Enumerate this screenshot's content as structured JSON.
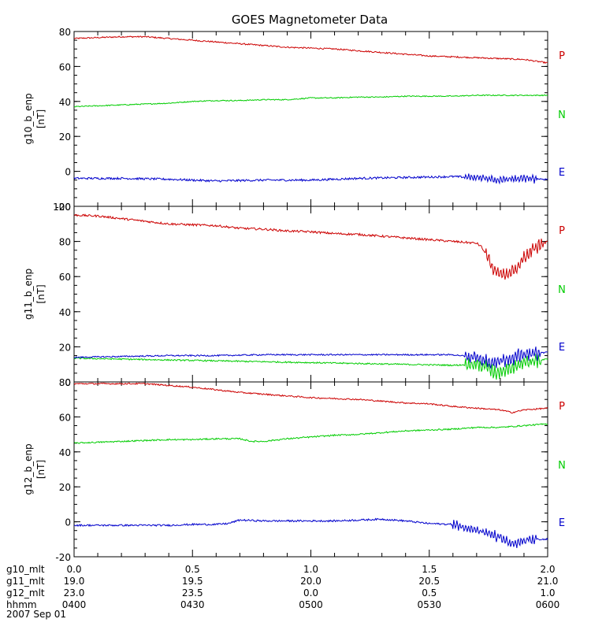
{
  "chart_data": {
    "type": "line",
    "title": "GOES Magnetometer Data",
    "colors": {
      "P": "#cc0000",
      "N": "#00cc00",
      "E": "#0000cc",
      "axis": "#000000"
    },
    "x_range": [
      0.0,
      2.0
    ],
    "x_major_ticks": [
      0.0,
      0.5,
      1.0,
      1.5,
      2.0
    ],
    "bottom_axis_rows": [
      {
        "label": "g10_mlt",
        "values": [
          "0.0",
          "0.5",
          "1.0",
          "1.5",
          "2.0"
        ]
      },
      {
        "label": "g11_mlt",
        "values": [
          "19.0",
          "19.5",
          "20.0",
          "20.5",
          "21.0"
        ]
      },
      {
        "label": "g12_mlt",
        "values": [
          "23.0",
          "23.5",
          "0.0",
          "0.5",
          "1.0"
        ]
      },
      {
        "label": "hhmm",
        "values": [
          "0400",
          "0430",
          "0500",
          "0530",
          "0600"
        ]
      }
    ],
    "date": "2007 Sep 01",
    "panels": [
      {
        "ylabel": "g10_b_enp",
        "yunit": "[nT]",
        "ylim": [
          -20,
          80
        ],
        "yticks": [
          "80",
          "60",
          "40",
          "20",
          "0",
          "-20"
        ],
        "yticks_num": [
          80,
          60,
          40,
          20,
          0,
          -20
        ],
        "legend": [
          "P",
          "N",
          "E"
        ],
        "series": [
          {
            "name": "P",
            "x": [
              0.0,
              0.1,
              0.2,
              0.3,
              0.4,
              0.5,
              0.6,
              0.7,
              0.8,
              0.9,
              1.0,
              1.1,
              1.2,
              1.3,
              1.4,
              1.5,
              1.6,
              1.7,
              1.8,
              1.9,
              2.0
            ],
            "y": [
              76,
              76.5,
              77,
              77,
              76,
              75,
              74,
              73,
              72,
              71,
              70.5,
              70,
              69,
              68,
              67,
              66,
              65.5,
              65,
              64.5,
              64,
              62
            ],
            "noise": 0.4
          },
          {
            "name": "N",
            "x": [
              0.0,
              0.1,
              0.2,
              0.3,
              0.4,
              0.5,
              0.6,
              0.7,
              0.8,
              0.9,
              1.0,
              1.1,
              1.2,
              1.3,
              1.4,
              1.5,
              1.6,
              1.7,
              1.8,
              1.9,
              2.0
            ],
            "y": [
              37,
              37.5,
              38,
              38.5,
              39,
              40,
              40.5,
              40.5,
              41,
              41,
              42,
              42,
              42.5,
              42.5,
              43,
              43,
              43,
              43.5,
              43.5,
              43.5,
              43.5
            ],
            "noise": 0.3
          },
          {
            "name": "E",
            "x": [
              0.0,
              0.2,
              0.4,
              0.6,
              0.8,
              1.0,
              1.2,
              1.4,
              1.6,
              1.7,
              1.75,
              1.8,
              1.85,
              1.9,
              2.0
            ],
            "y": [
              -4,
              -4,
              -4.5,
              -5.5,
              -5,
              -5,
              -4,
              -3.5,
              -3,
              -3.5,
              -4,
              -5,
              -4.5,
              -4,
              -4.5
            ],
            "noise": 0.6,
            "wiggle": {
              "from": 1.65,
              "to": 1.95,
              "amp": 1.5
            }
          }
        ]
      },
      {
        "ylabel": "g11_b_enp",
        "yunit": "[nT]",
        "ylim": [
          0,
          100
        ],
        "yticks": [
          "100",
          "80",
          "60",
          "40",
          "20",
          "0"
        ],
        "yticks_num": [
          100,
          80,
          60,
          40,
          20,
          0
        ],
        "legend": [
          "P",
          "N",
          "E"
        ],
        "series": [
          {
            "name": "P",
            "x": [
              0.0,
              0.1,
              0.2,
              0.3,
              0.4,
              0.5,
              0.6,
              0.7,
              0.8,
              0.9,
              1.0,
              1.1,
              1.2,
              1.3,
              1.4,
              1.5,
              1.6,
              1.7,
              1.72,
              1.75,
              1.78,
              1.82,
              1.86,
              1.9,
              1.94,
              2.0
            ],
            "y": [
              95,
              94.5,
              93,
              91.5,
              90,
              89.5,
              89,
              87.5,
              87,
              86,
              85.5,
              84.5,
              84,
              83,
              82,
              81,
              80,
              79,
              77,
              70,
              62,
              61,
              64,
              70,
              76,
              80
            ],
            "noise": 0.6,
            "wiggle": {
              "from": 1.74,
              "to": 1.98,
              "amp": 3
            }
          },
          {
            "name": "N",
            "x": [
              0.0,
              0.2,
              0.4,
              0.6,
              0.8,
              1.0,
              1.2,
              1.4,
              1.6,
              1.7,
              1.75,
              1.78,
              1.82,
              1.86,
              1.9,
              2.0
            ],
            "y": [
              13.5,
              13,
              12.5,
              12,
              11.5,
              11,
              10.5,
              10,
              9.5,
              10,
              8,
              5,
              7,
              9,
              11,
              13
            ],
            "noise": 0.4,
            "wiggle": {
              "from": 1.65,
              "to": 1.97,
              "amp": 3
            }
          },
          {
            "name": "E",
            "x": [
              0.0,
              0.2,
              0.4,
              0.6,
              0.8,
              1.0,
              1.2,
              1.4,
              1.6,
              1.7,
              1.75,
              1.78,
              1.82,
              1.86,
              1.9,
              2.0
            ],
            "y": [
              14,
              14.5,
              15,
              15,
              15.5,
              15.5,
              15.5,
              15.5,
              15.5,
              14,
              12,
              11,
              13,
              14,
              15.5,
              17
            ],
            "noise": 0.4,
            "wiggle": {
              "from": 1.65,
              "to": 1.97,
              "amp": 3
            }
          }
        ]
      },
      {
        "ylabel": "g12_b_enp",
        "yunit": "[nT]",
        "ylim": [
          -20,
          80
        ],
        "yticks": [
          "80",
          "60",
          "40",
          "20",
          "0",
          "-20"
        ],
        "yticks_num": [
          80,
          60,
          40,
          20,
          0,
          -20
        ],
        "legend": [
          "P",
          "N",
          "E"
        ],
        "series": [
          {
            "name": "P",
            "x": [
              0.0,
              0.1,
              0.2,
              0.3,
              0.4,
              0.5,
              0.6,
              0.7,
              0.8,
              0.9,
              1.0,
              1.1,
              1.2,
              1.3,
              1.4,
              1.5,
              1.6,
              1.7,
              1.8,
              1.85,
              1.9,
              2.0
            ],
            "y": [
              79,
              79,
              79,
              79,
              78,
              77,
              75.5,
              74,
              73,
              72,
              71,
              70.5,
              70,
              69,
              68,
              67.5,
              66,
              65,
              64,
              62.5,
              64,
              65
            ],
            "noise": 0.4
          },
          {
            "name": "N",
            "x": [
              0.0,
              0.1,
              0.2,
              0.3,
              0.4,
              0.5,
              0.6,
              0.7,
              0.75,
              0.8,
              0.9,
              1.0,
              1.1,
              1.2,
              1.3,
              1.4,
              1.5,
              1.6,
              1.7,
              1.8,
              1.9,
              2.0
            ],
            "y": [
              45,
              45.5,
              46,
              46.5,
              47,
              47,
              47.5,
              47.5,
              46,
              46,
              47.5,
              48.5,
              49.5,
              50,
              51,
              52,
              52.5,
              53,
              54,
              54,
              55,
              56
            ],
            "noise": 0.4
          },
          {
            "name": "E",
            "x": [
              0.0,
              0.2,
              0.4,
              0.5,
              0.6,
              0.65,
              0.7,
              0.8,
              1.0,
              1.1,
              1.2,
              1.3,
              1.4,
              1.5,
              1.6,
              1.65,
              1.7,
              1.75,
              1.8,
              1.85,
              1.9,
              1.95,
              2.0
            ],
            "y": [
              -2,
              -2,
              -2,
              -1.5,
              -1.5,
              -1,
              1,
              0.5,
              0.5,
              0.5,
              1,
              1.5,
              0.5,
              -1,
              -1.5,
              -3,
              -5,
              -7,
              -9,
              -13,
              -11,
              -10,
              -10
            ],
            "noise": 0.5,
            "wiggle": {
              "from": 1.6,
              "to": 1.95,
              "amp": 2
            }
          }
        ]
      }
    ]
  }
}
